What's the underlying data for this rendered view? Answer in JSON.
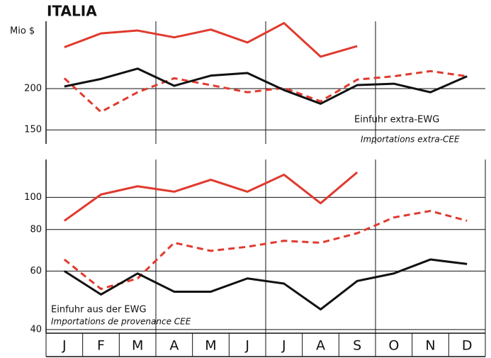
{
  "chart_data": [
    {
      "type": "line",
      "title": "ITALIA",
      "ylabel": "Mio $",
      "log_scale": true,
      "annotations": [
        "Einfuhr extra-EWG",
        "Importations extra-CEE"
      ],
      "ylim": [
        136,
        320
      ],
      "yticks": [
        150,
        200
      ],
      "grid": true,
      "series": [
        {
          "color": "#e03a2e",
          "dashed": false,
          "values": [
            267,
            294,
            300,
            286,
            302,
            276,
            316,
            250,
            269,
            null,
            null,
            null
          ]
        },
        {
          "color": "#e03a2e",
          "dashed": true,
          "values": [
            215,
            170,
            195,
            215,
            205,
            195,
            201,
            183,
            213,
            218,
            226,
            218
          ]
        },
        {
          "color": "#111111",
          "dashed": false,
          "values": [
            203,
            214,
            230,
            204,
            219,
            223,
            198,
            180,
            205,
            207,
            195,
            218
          ]
        }
      ]
    },
    {
      "type": "line",
      "log_scale": true,
      "annotations": [
        "Einfuhr aus der EWG",
        "Importations de provenance CEE"
      ],
      "categories": [
        "J",
        "F",
        "M",
        "A",
        "M",
        "J",
        "J",
        "A",
        "S",
        "O",
        "N",
        "D"
      ],
      "ylim": [
        39,
        130
      ],
      "yticks": [
        40,
        60,
        80,
        100
      ],
      "grid": true,
      "series": [
        {
          "color": "#e03a2e",
          "dashed": false,
          "values": [
            85,
            102,
            108,
            104,
            113,
            104,
            117,
            96,
            119,
            null,
            null,
            null
          ]
        },
        {
          "color": "#e03a2e",
          "dashed": true,
          "values": [
            65,
            53,
            57,
            73,
            69,
            71,
            74,
            73,
            78,
            87,
            91,
            85
          ]
        },
        {
          "color": "#111111",
          "dashed": false,
          "values": [
            60,
            51,
            59,
            52,
            52,
            57,
            55,
            46,
            56,
            59,
            65,
            63
          ]
        }
      ]
    }
  ]
}
